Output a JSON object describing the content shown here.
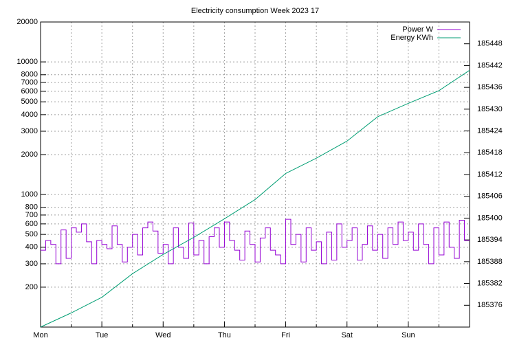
{
  "chart_data": {
    "type": "line",
    "title": "Electricity consumption Week 2023 17",
    "xlim": [
      0,
      168
    ],
    "xticks": [
      {
        "value": 0,
        "label": "Mon"
      },
      {
        "value": 24,
        "label": "Tue"
      },
      {
        "value": 48,
        "label": "Wed"
      },
      {
        "value": 72,
        "label": "Thu"
      },
      {
        "value": 96,
        "label": "Fri"
      },
      {
        "value": 120,
        "label": "Sat"
      },
      {
        "value": 144,
        "label": "Sun"
      }
    ],
    "xminor": 2,
    "ylim": [
      100,
      20000
    ],
    "log_y": true,
    "yticks": [
      200,
      300,
      400,
      500,
      600,
      700,
      800,
      1000,
      2000,
      3000,
      4000,
      5000,
      6000,
      7000,
      8000,
      10000,
      20000
    ],
    "y2lim": [
      185370,
      185454
    ],
    "y2ticks": [
      185376,
      185382,
      185388,
      185394,
      185400,
      185406,
      185412,
      185418,
      185424,
      185430,
      185436,
      185442,
      185448
    ],
    "grid": true,
    "legend": "top right",
    "series": [
      {
        "name": "Power W",
        "color": "#9400d3",
        "steps": true,
        "x": [
          0,
          2,
          4,
          6,
          8,
          10,
          12,
          14,
          16,
          18,
          20,
          22,
          24,
          26,
          28,
          30,
          32,
          34,
          36,
          38,
          40,
          42,
          44,
          46,
          48,
          50,
          52,
          54,
          56,
          58,
          60,
          62,
          64,
          66,
          68,
          70,
          72,
          74,
          76,
          78,
          80,
          82,
          84,
          86,
          88,
          90,
          92,
          94,
          96,
          98,
          100,
          102,
          104,
          106,
          108,
          110,
          112,
          114,
          116,
          118,
          120,
          122,
          124,
          126,
          128,
          130,
          132,
          134,
          136,
          138,
          140,
          142,
          144,
          146,
          148,
          150,
          152,
          154,
          156,
          158,
          160,
          162,
          164,
          166
        ],
        "values": [
          380,
          450,
          420,
          300,
          540,
          330,
          560,
          520,
          600,
          440,
          300,
          450,
          420,
          390,
          580,
          420,
          310,
          400,
          500,
          350,
          560,
          620,
          530,
          360,
          420,
          300,
          560,
          400,
          330,
          610,
          350,
          450,
          300,
          480,
          560,
          400,
          620,
          450,
          380,
          320,
          530,
          420,
          310,
          470,
          560,
          380,
          350,
          300,
          650,
          420,
          500,
          310,
          560,
          380,
          440,
          300,
          520,
          320,
          600,
          400,
          450,
          560,
          320,
          420,
          580,
          380,
          500,
          330,
          560,
          420,
          620,
          450,
          520,
          380,
          600,
          420,
          300,
          560,
          350,
          620,
          400,
          330,
          640,
          450
        ]
      },
      {
        "name": "Energy KWh",
        "color": "#009e73",
        "axis": "y2",
        "x": [
          0,
          12,
          24,
          36,
          48,
          60,
          72,
          84,
          96,
          108,
          120,
          132,
          144,
          156,
          168
        ],
        "values": [
          185370,
          185373.9,
          185378.2,
          185384.7,
          185390,
          185394.7,
          185399.8,
          185405.1,
          185412.3,
          185416.5,
          185421.2,
          185427.9,
          185431.6,
          185435.1,
          185440.7
        ]
      }
    ]
  }
}
